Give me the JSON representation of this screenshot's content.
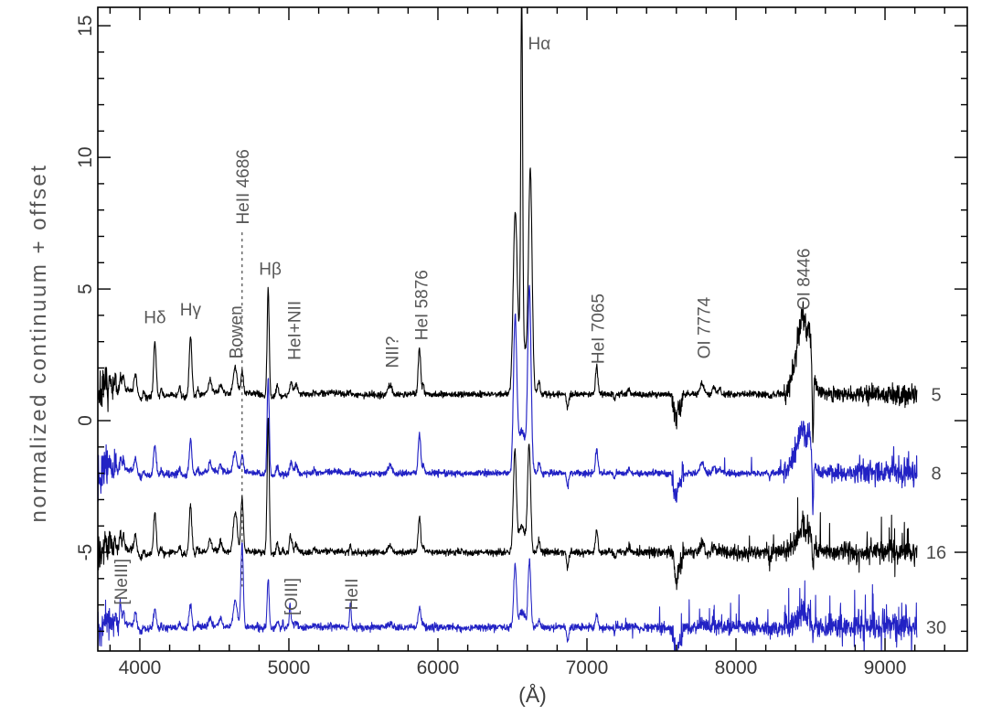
{
  "figure": {
    "background": "#ffffff",
    "frame_color": "#000000",
    "tick_label_color": "#383838",
    "annotation_color": "#585858",
    "series_label_color": "#4d4d4d",
    "blue": "#2222c4"
  },
  "chart_data": {
    "type": "line",
    "title": "",
    "xlabel": "(Å)",
    "ylabel": "normalized continuum + offset",
    "xlim": [
      3718,
      9552
    ],
    "ylim": [
      -8.75,
      15.7
    ],
    "data_range": [
      3718,
      9215
    ],
    "x_major_ticks": [
      4000,
      5000,
      6000,
      7000,
      8000,
      9000
    ],
    "x_minor_step": 200,
    "y_major_ticks": [
      -5,
      0,
      5,
      10,
      15
    ],
    "y_minor_step": 1,
    "grid": false,
    "legend": "none",
    "series": [
      {
        "name": "spectrum-5",
        "right_label": "5",
        "color": "#000000",
        "stroke_width": 1.1,
        "offset": 1.0,
        "seed": 7,
        "wiggle": 0.12,
        "noise_base": 0.06,
        "blue_noise": 0.38,
        "red_noise": 0.18,
        "red_noise_start": 8200,
        "spike_start": 7900,
        "spike_prob_max": 0.028,
        "spike_amp_max": 0.85,
        "neg_frac": 0.45,
        "bump_noise": 1.0,
        "halpha_components": [
          [
            6562,
            6,
            13.2
          ],
          [
            6518,
            13,
            6.2
          ],
          [
            6620,
            12,
            8.2
          ],
          [
            6563,
            30,
            2.2
          ]
        ]
      },
      {
        "name": "spectrum-8",
        "right_label": "8",
        "color": "#2222c4",
        "stroke_width": 1.15,
        "offset": -2.0,
        "seed": 13,
        "wiggle": 0.1,
        "noise_base": 0.06,
        "blue_noise": 0.38,
        "red_noise": 0.22,
        "red_noise_start": 8300,
        "spike_start": 7650,
        "spike_prob_max": 0.04,
        "spike_amp_max": 1.5,
        "neg_frac": 0.3,
        "bump_noise": 0.8,
        "halpha_components": [
          [
            6518,
            11,
            5.6
          ],
          [
            6614,
            11,
            6.9
          ],
          [
            6563,
            26,
            1.6
          ]
        ]
      },
      {
        "name": "spectrum-16",
        "right_label": "16",
        "color": "#000000",
        "stroke_width": 1.05,
        "offset": -5.0,
        "seed": 29,
        "wiggle": 0.09,
        "noise_base": 0.065,
        "blue_noise": 0.34,
        "red_noise": 0.15,
        "red_noise_start": 7100,
        "spike_start": 7090,
        "spike_prob_max": 0.095,
        "spike_amp_max": 2.0,
        "neg_frac": 0.25,
        "bump_noise": 0.5,
        "halpha_components": [
          [
            6516,
            10,
            3.7
          ],
          [
            6612,
            10,
            4.0
          ],
          [
            6563,
            24,
            1.0
          ]
        ]
      },
      {
        "name": "spectrum-30",
        "right_label": "30",
        "color": "#2222c4",
        "stroke_width": 1.05,
        "offset": -7.85,
        "seed": 41,
        "wiggle": 0.07,
        "noise_base": 0.07,
        "blue_noise": 0.38,
        "red_noise": 0.17,
        "red_noise_start": 7100,
        "spike_start": 7090,
        "spike_prob_max": 0.14,
        "spike_amp_max": 2.6,
        "neg_frac": 0.25,
        "bump_noise": 0.4,
        "halpha_components": [
          [
            6518,
            9,
            2.4
          ],
          [
            6614,
            9,
            2.6
          ],
          [
            6563,
            20,
            0.6
          ]
        ]
      }
    ],
    "emission_lines": [
      [
        3770,
        7,
        0.45,
        0.35,
        0.4,
        0.35
      ],
      [
        3798,
        7,
        0.5,
        0.38,
        0.45,
        0.38
      ],
      [
        3835,
        7,
        0.55,
        0.42,
        0.5,
        0.42
      ],
      [
        3869,
        6,
        0.6,
        0.5,
        0.7,
        0.85
      ],
      [
        3889,
        7,
        0.6,
        0.45,
        0.55,
        0.5
      ],
      [
        3970,
        8,
        0.65,
        0.5,
        0.6,
        0.5
      ],
      [
        4026,
        7,
        0.3,
        0.25,
        0.28,
        0.2
      ],
      [
        4101,
        9,
        2.05,
        1.15,
        1.55,
        0.75
      ],
      [
        4144,
        7,
        0.25,
        0.2,
        0.2,
        0.15
      ],
      [
        4267,
        7,
        0.3,
        0.22,
        0.25,
        0.18
      ],
      [
        4340,
        9,
        2.3,
        1.35,
        1.85,
        0.95
      ],
      [
        4388,
        7,
        0.25,
        0.2,
        0.2,
        0.15
      ],
      [
        4471,
        8,
        0.5,
        0.4,
        0.42,
        0.3
      ],
      [
        4542,
        8,
        0.3,
        0.22,
        0.35,
        0.3
      ],
      [
        4640,
        13,
        1.05,
        0.8,
        1.5,
        1.0
      ],
      [
        4686,
        8,
        0.85,
        0.7,
        2.1,
        3.25
      ],
      [
        4861,
        7,
        4.1,
        3.7,
        5.2,
        1.9
      ],
      [
        4922,
        8,
        0.45,
        0.38,
        0.4,
        0.28
      ],
      [
        4959,
        4,
        0.0,
        0.0,
        0.15,
        0.3
      ],
      [
        5007,
        4,
        0.0,
        0.0,
        0.4,
        0.8
      ],
      [
        5016,
        8,
        0.5,
        0.42,
        0.45,
        0.3
      ],
      [
        5048,
        9,
        0.35,
        0.3,
        0.3,
        0.2
      ],
      [
        5169,
        7,
        0.15,
        0.12,
        0.12,
        0.1
      ],
      [
        5412,
        6,
        0.12,
        0.1,
        0.3,
        0.8
      ],
      [
        5680,
        14,
        0.4,
        0.32,
        0.28,
        0.15
      ],
      [
        5876,
        8,
        1.75,
        1.5,
        1.35,
        0.75
      ],
      [
        5902,
        6,
        0.35,
        0.3,
        0.25,
        0.15
      ],
      [
        6678,
        8,
        0.5,
        0.42,
        0.45,
        0.28
      ],
      [
        7065,
        8,
        1.05,
        0.9,
        0.85,
        0.5
      ],
      [
        7281,
        7,
        0.22,
        0.18,
        0.18,
        0.12
      ],
      [
        7772,
        13,
        0.42,
        0.38,
        0.3,
        0.18
      ],
      [
        7852,
        10,
        0.28,
        0.24,
        0.2,
        0.12
      ],
      [
        7890,
        8,
        0.22,
        0.18,
        0.15,
        0.1
      ],
      [
        8446,
        45,
        2.6,
        1.5,
        0.7,
        0.5
      ],
      [
        8446,
        9,
        0.6,
        0.45,
        0.4,
        0.3
      ],
      [
        8495,
        12,
        0.9,
        0.7,
        0.3,
        0.2
      ]
    ],
    "absorptions": [
      [
        4015,
        22,
        0.25,
        0.22,
        0.25,
        0.2
      ],
      [
        6870,
        7,
        0.5,
        0.5,
        0.55,
        0.55
      ],
      [
        7186,
        6,
        0.18,
        0.18,
        0.2,
        0.2
      ],
      [
        7600,
        12,
        0.95,
        0.95,
        1.15,
        1.2
      ],
      [
        7630,
        6,
        0.45,
        0.45,
        0.55,
        0.55
      ],
      [
        8228,
        7,
        0.15,
        0.15,
        0.2,
        0.2
      ],
      [
        8516,
        4,
        2.8,
        2.0,
        0.8,
        0.6
      ]
    ],
    "extra_noise_regions": [
      [
        7570,
        7650,
        0.2
      ],
      [
        8320,
        8505,
        0.18
      ]
    ],
    "annotations": [
      {
        "text": "Hδ",
        "wl": 4101,
        "y": 3.7,
        "rot": 0
      },
      {
        "text": "Hγ",
        "wl": 4340,
        "y": 4.0,
        "rot": 0
      },
      {
        "text": "Bowen",
        "wl": 4642,
        "y": 2.35,
        "rot": -90
      },
      {
        "text": "HeII 4686",
        "wl": 4686,
        "y": 7.45,
        "rot": -90
      },
      {
        "text": "Hβ",
        "wl": 4875,
        "y": 5.55,
        "rot": 0
      },
      {
        "text": "HeI+NII",
        "wl": 5035,
        "y": 2.3,
        "rot": -90
      },
      {
        "text": "NII?",
        "wl": 5690,
        "y": 2.0,
        "rot": -90
      },
      {
        "text": "HeI 5876",
        "wl": 5886,
        "y": 3.05,
        "rot": -90
      },
      {
        "text": "Hα",
        "wl": 6680,
        "y": 14.1,
        "rot": 0
      },
      {
        "text": "HeI 7065",
        "wl": 7072,
        "y": 2.15,
        "rot": -90
      },
      {
        "text": "OI 7774",
        "wl": 7782,
        "y": 2.35,
        "rot": -90
      },
      {
        "text": "OI 8446",
        "wl": 8452,
        "y": 4.2,
        "rot": -90
      },
      {
        "text": "[NeIII]",
        "wl": 3872,
        "y": -7.0,
        "rot": -90
      },
      {
        "text": "[OIII]",
        "wl": 5012,
        "y": -7.4,
        "rot": -90
      },
      {
        "text": "HeII",
        "wl": 5418,
        "y": -7.2,
        "rot": -90
      }
    ],
    "dashed_marker": {
      "wl": 4686,
      "y_top": 7.15,
      "y_bottom": -6.3
    }
  }
}
